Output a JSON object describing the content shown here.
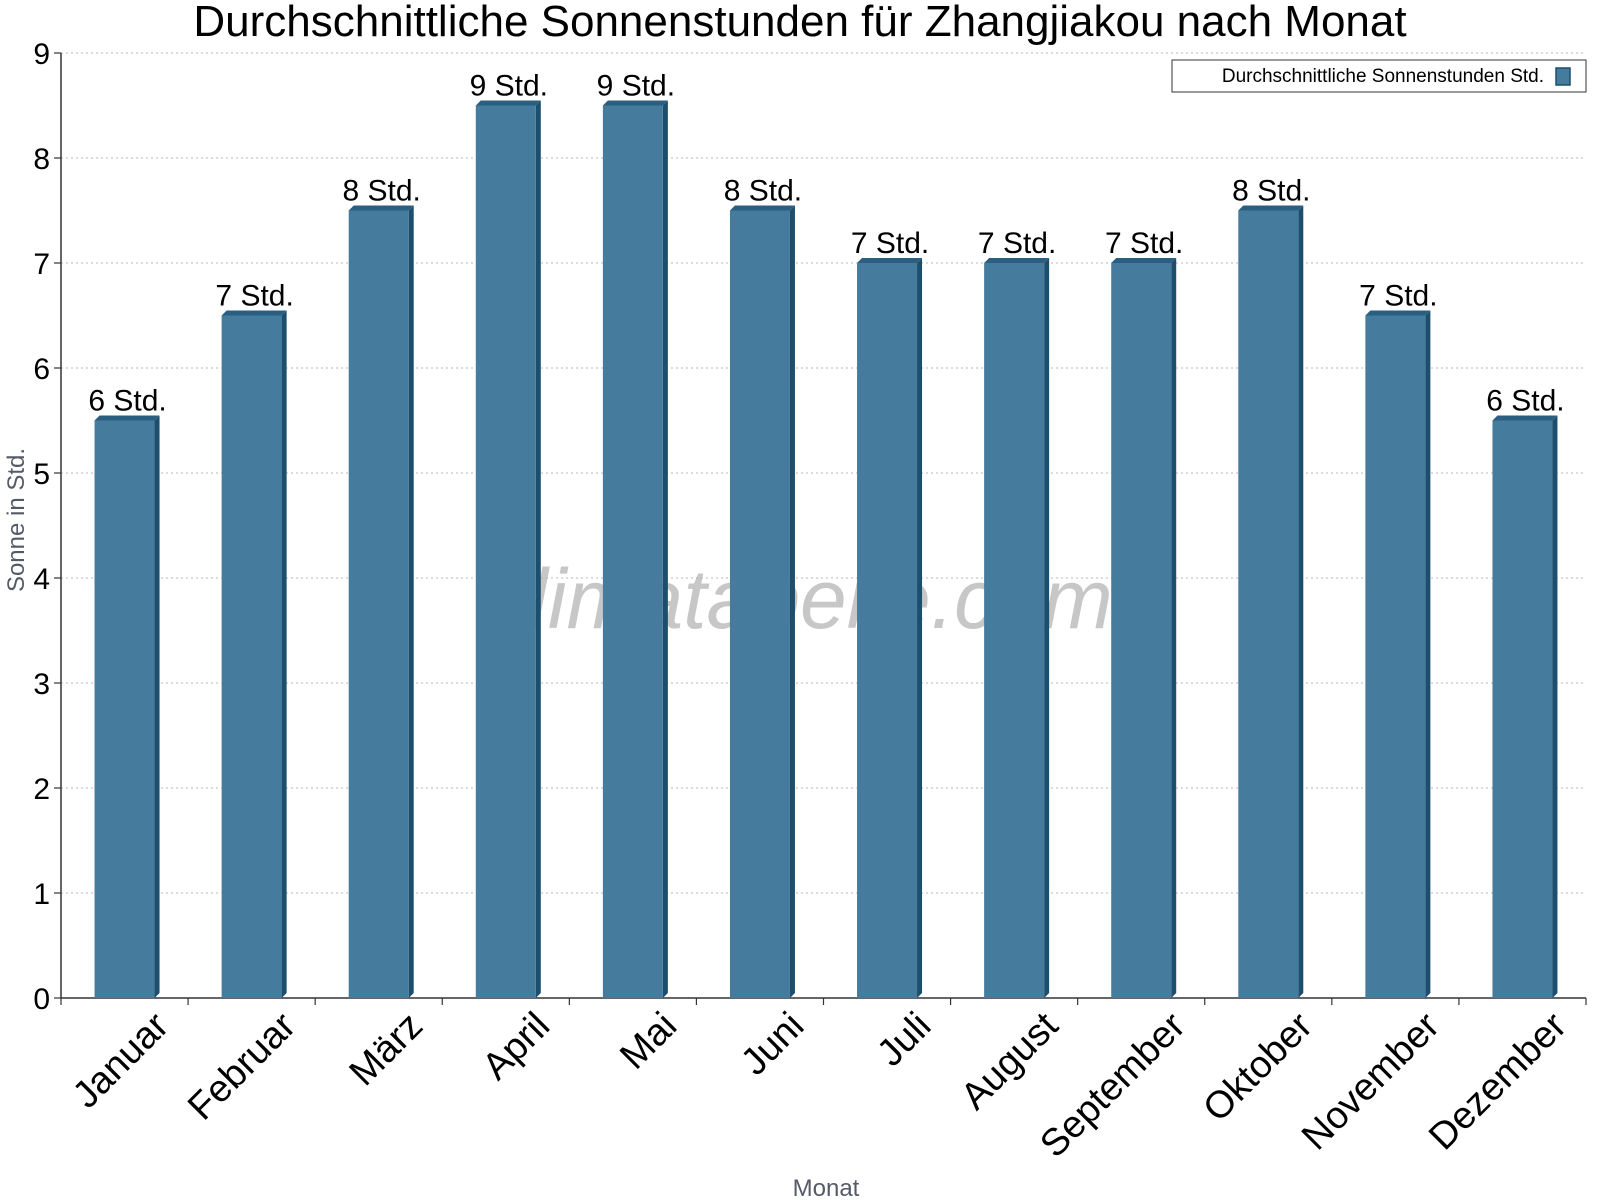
{
  "chart_data": {
    "type": "bar",
    "title": "Durchschnittliche Sonnenstunden für Zhangjiakou nach Monat",
    "xlabel": "Monat",
    "ylabel": "Sonne in Std.",
    "ylim": [
      0,
      9
    ],
    "yticks": [
      "0",
      "1",
      "2",
      "3",
      "4",
      "5",
      "6",
      "7",
      "8",
      "9"
    ],
    "grid": true,
    "legend_position": "top-right",
    "categories": [
      "Januar",
      "Februar",
      "März",
      "April",
      "Mai",
      "Juni",
      "Juli",
      "August",
      "September",
      "Oktober",
      "November",
      "Dezember"
    ],
    "series": [
      {
        "name": "Durchschnittliche Sonnenstunden Std.",
        "values": [
          5.5,
          6.5,
          7.5,
          8.5,
          8.5,
          7.5,
          7.0,
          7.0,
          7.0,
          7.5,
          6.5,
          5.5
        ],
        "data_labels": [
          "6 Std.",
          "7 Std.",
          "8 Std.",
          "9 Std.",
          "9 Std.",
          "8 Std.",
          "7 Std.",
          "7 Std.",
          "7 Std.",
          "8 Std.",
          "7 Std.",
          "6 Std."
        ]
      }
    ],
    "colors": {
      "bar_front": "#457b9d",
      "bar_side": "#1d4e6e",
      "bar_top": "#2b5f82",
      "axis": "#333333",
      "grid": "#c8c8c8"
    },
    "watermark": "klimatabelle.com"
  }
}
